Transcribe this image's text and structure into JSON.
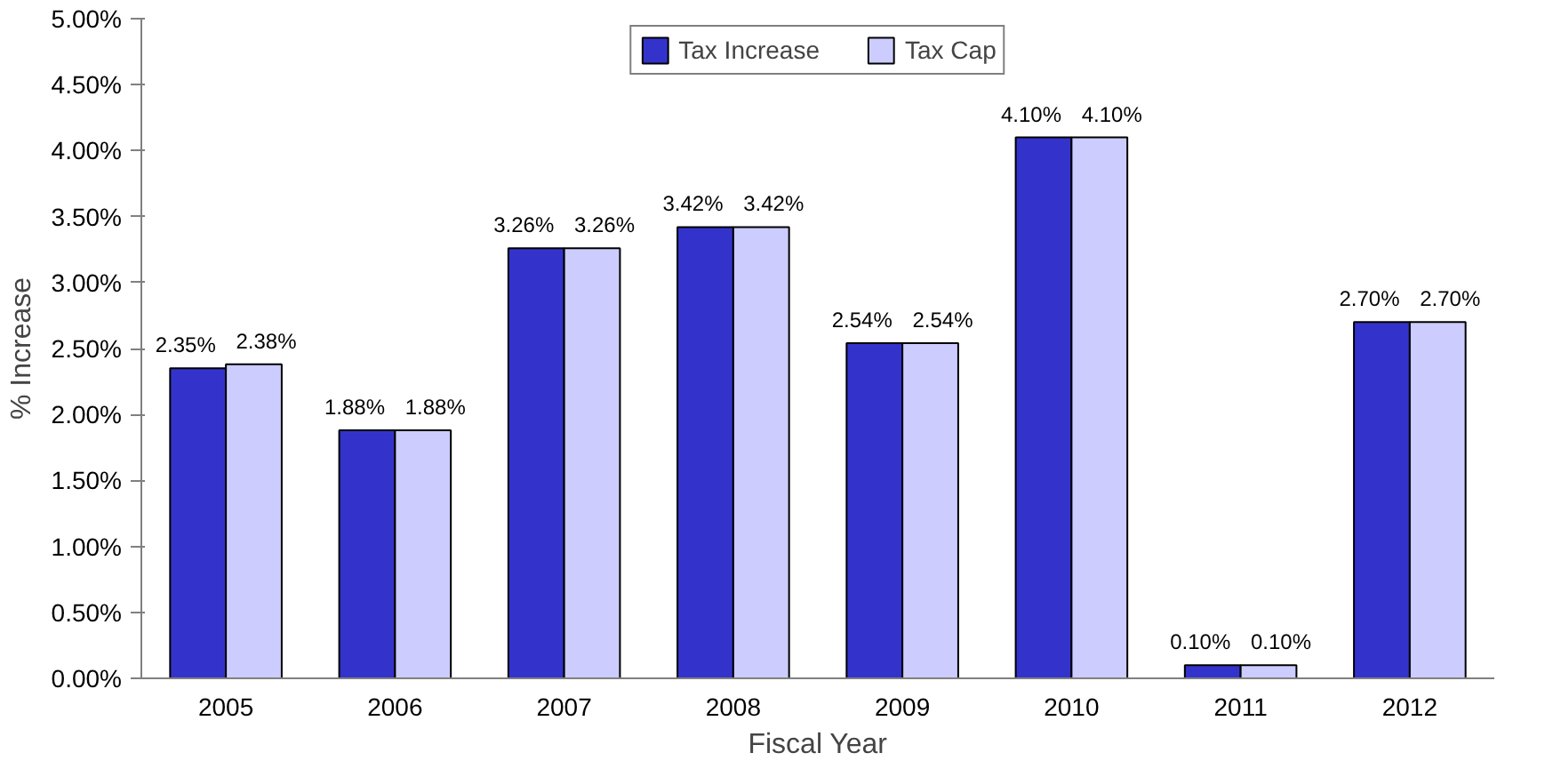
{
  "chart_data": {
    "type": "bar",
    "xlabel": "Fiscal Year",
    "ylabel": "% Increase",
    "categories": [
      "2005",
      "2006",
      "2007",
      "2008",
      "2009",
      "2010",
      "2011",
      "2012"
    ],
    "series": [
      {
        "name": "Tax Increase",
        "color": "#3333cc",
        "values": [
          2.35,
          1.88,
          3.26,
          3.42,
          2.54,
          4.1,
          0.1,
          2.7
        ],
        "value_labels": [
          "2.35%",
          "1.88%",
          "3.26%",
          "3.42%",
          "2.54%",
          "4.10%",
          "0.10%",
          "2.70%"
        ]
      },
      {
        "name": "Tax Cap",
        "color": "#ccccff",
        "values": [
          2.38,
          1.88,
          3.26,
          3.42,
          2.54,
          4.1,
          0.1,
          2.7
        ],
        "value_labels": [
          "2.38%",
          "1.88%",
          "3.26%",
          "3.42%",
          "2.54%",
          "4.10%",
          "0.10%",
          "2.70%"
        ]
      }
    ],
    "ylim": [
      0,
      5
    ],
    "yticks": [
      {
        "value": 0,
        "label": "0.00%"
      },
      {
        "value": 0.5,
        "label": "0.50%"
      },
      {
        "value": 1,
        "label": "1.00%"
      },
      {
        "value": 1.5,
        "label": "1.50%"
      },
      {
        "value": 2,
        "label": "2.00%"
      },
      {
        "value": 2.5,
        "label": "2.50%"
      },
      {
        "value": 3,
        "label": "3.00%"
      },
      {
        "value": 3.5,
        "label": "3.50%"
      },
      {
        "value": 4,
        "label": "4.00%"
      },
      {
        "value": 4.5,
        "label": "4.50%"
      },
      {
        "value": 5,
        "label": "5.00%"
      }
    ],
    "grid": false,
    "legend": "top"
  }
}
